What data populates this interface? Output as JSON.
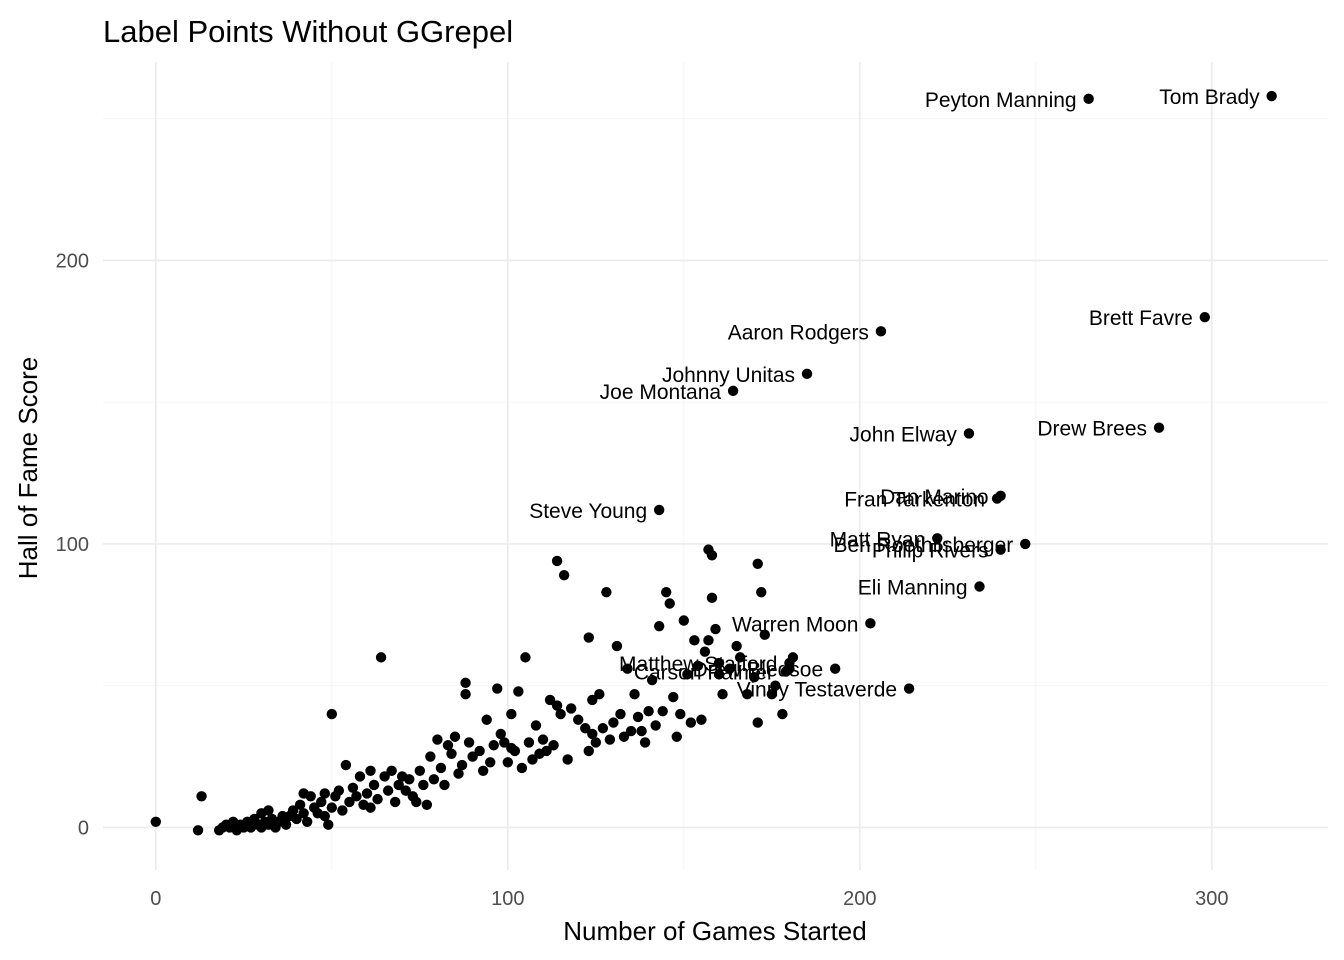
{
  "chart_data": {
    "type": "scatter",
    "title": "Label Points Without GGrepel",
    "xlabel": "Number of Games Started",
    "ylabel": "Hall of Fame Score",
    "xlim": [
      -15,
      333
    ],
    "ylim": [
      -15,
      270
    ],
    "x_ticks": [
      0,
      100,
      200,
      300
    ],
    "y_ticks": [
      0,
      100,
      200
    ],
    "grid": true,
    "legend": "none",
    "point_color": "#000000",
    "labeled_points": [
      {
        "name": "Tom Brady",
        "x": 317,
        "y": 258
      },
      {
        "name": "Peyton Manning",
        "x": 265,
        "y": 257
      },
      {
        "name": "Brett Favre",
        "x": 298,
        "y": 180
      },
      {
        "name": "Aaron Rodgers",
        "x": 206,
        "y": 175
      },
      {
        "name": "Johnny Unitas",
        "x": 185,
        "y": 160
      },
      {
        "name": "Joe Montana",
        "x": 164,
        "y": 154
      },
      {
        "name": "Drew Brees",
        "x": 285,
        "y": 141
      },
      {
        "name": "John Elway",
        "x": 231,
        "y": 139
      },
      {
        "name": "Dan Marino",
        "x": 240,
        "y": 117
      },
      {
        "name": "Fran Tarkenton",
        "x": 239,
        "y": 116
      },
      {
        "name": "Steve Young",
        "x": 143,
        "y": 112
      },
      {
        "name": "Matt Ryan",
        "x": 222,
        "y": 102
      },
      {
        "name": "Ben Roethlisberger",
        "x": 247,
        "y": 100
      },
      {
        "name": "Philip Rivers",
        "x": 240,
        "y": 98
      },
      {
        "name": "Eli Manning",
        "x": 234,
        "y": 85
      },
      {
        "name": "Warren Moon",
        "x": 203,
        "y": 72
      },
      {
        "name": "Matthew Stafford",
        "x": 180,
        "y": 58
      },
      {
        "name": "Carson Palmer",
        "x": 179,
        "y": 55
      },
      {
        "name": "Drew Bledsoe",
        "x": 193,
        "y": 56
      },
      {
        "name": "Vinny Testaverde",
        "x": 214,
        "y": 49
      }
    ],
    "points": [
      [
        0,
        2
      ],
      [
        12,
        -1
      ],
      [
        13,
        11
      ],
      [
        18,
        -1
      ],
      [
        19,
        0
      ],
      [
        20,
        1
      ],
      [
        21,
        0
      ],
      [
        22,
        2
      ],
      [
        23,
        -1
      ],
      [
        24,
        1
      ],
      [
        25,
        0
      ],
      [
        26,
        2
      ],
      [
        27,
        0
      ],
      [
        28,
        3
      ],
      [
        29,
        1
      ],
      [
        30,
        5
      ],
      [
        30,
        0
      ],
      [
        31,
        2
      ],
      [
        32,
        6
      ],
      [
        32,
        1
      ],
      [
        33,
        3
      ],
      [
        34,
        0
      ],
      [
        35,
        2
      ],
      [
        36,
        4
      ],
      [
        37,
        1
      ],
      [
        38,
        4
      ],
      [
        39,
        6
      ],
      [
        40,
        3
      ],
      [
        41,
        8
      ],
      [
        42,
        5
      ],
      [
        42,
        12
      ],
      [
        43,
        2
      ],
      [
        44,
        11
      ],
      [
        45,
        7
      ],
      [
        46,
        5
      ],
      [
        47,
        9
      ],
      [
        48,
        4
      ],
      [
        48,
        12
      ],
      [
        49,
        1
      ],
      [
        50,
        7
      ],
      [
        50,
        40
      ],
      [
        51,
        11
      ],
      [
        52,
        13
      ],
      [
        53,
        6
      ],
      [
        54,
        22
      ],
      [
        55,
        9
      ],
      [
        56,
        14
      ],
      [
        57,
        11
      ],
      [
        58,
        18
      ],
      [
        59,
        8
      ],
      [
        60,
        12
      ],
      [
        61,
        20
      ],
      [
        61,
        7
      ],
      [
        62,
        15
      ],
      [
        63,
        10
      ],
      [
        64,
        60
      ],
      [
        65,
        18
      ],
      [
        66,
        13
      ],
      [
        67,
        20
      ],
      [
        68,
        9
      ],
      [
        69,
        15
      ],
      [
        70,
        18
      ],
      [
        71,
        13
      ],
      [
        72,
        17
      ],
      [
        73,
        11
      ],
      [
        74,
        9
      ],
      [
        75,
        20
      ],
      [
        76,
        15
      ],
      [
        77,
        8
      ],
      [
        78,
        25
      ],
      [
        79,
        17
      ],
      [
        80,
        31
      ],
      [
        81,
        21
      ],
      [
        82,
        15
      ],
      [
        83,
        29
      ],
      [
        84,
        26
      ],
      [
        85,
        32
      ],
      [
        86,
        19
      ],
      [
        87,
        22
      ],
      [
        88,
        47
      ],
      [
        88,
        51
      ],
      [
        89,
        30
      ],
      [
        90,
        25
      ],
      [
        92,
        27
      ],
      [
        93,
        20
      ],
      [
        94,
        38
      ],
      [
        95,
        23
      ],
      [
        96,
        29
      ],
      [
        97,
        49
      ],
      [
        98,
        33
      ],
      [
        99,
        30
      ],
      [
        100,
        23
      ],
      [
        101,
        28
      ],
      [
        101,
        40
      ],
      [
        102,
        27
      ],
      [
        103,
        48
      ],
      [
        104,
        21
      ],
      [
        105,
        60
      ],
      [
        106,
        30
      ],
      [
        107,
        24
      ],
      [
        108,
        36
      ],
      [
        109,
        26
      ],
      [
        110,
        31
      ],
      [
        111,
        27
      ],
      [
        112,
        45
      ],
      [
        113,
        29
      ],
      [
        114,
        94
      ],
      [
        114,
        43
      ],
      [
        115,
        40
      ],
      [
        116,
        89
      ],
      [
        117,
        24
      ],
      [
        118,
        42
      ],
      [
        120,
        38
      ],
      [
        122,
        35
      ],
      [
        123,
        27
      ],
      [
        123,
        67
      ],
      [
        124,
        33
      ],
      [
        124,
        45
      ],
      [
        125,
        30
      ],
      [
        126,
        47
      ],
      [
        127,
        35
      ],
      [
        128,
        83
      ],
      [
        129,
        31
      ],
      [
        130,
        37
      ],
      [
        131,
        64
      ],
      [
        132,
        40
      ],
      [
        133,
        32
      ],
      [
        134,
        56
      ],
      [
        135,
        34
      ],
      [
        136,
        47
      ],
      [
        137,
        39
      ],
      [
        138,
        34
      ],
      [
        139,
        30
      ],
      [
        140,
        41
      ],
      [
        141,
        52
      ],
      [
        142,
        36
      ],
      [
        143,
        71
      ],
      [
        144,
        41
      ],
      [
        145,
        83
      ],
      [
        146,
        79
      ],
      [
        147,
        46
      ],
      [
        148,
        32
      ],
      [
        149,
        40
      ],
      [
        150,
        73
      ],
      [
        151,
        54
      ],
      [
        152,
        37
      ],
      [
        153,
        66
      ],
      [
        154,
        57
      ],
      [
        155,
        38
      ],
      [
        156,
        62
      ],
      [
        157,
        98
      ],
      [
        157,
        66
      ],
      [
        158,
        96
      ],
      [
        158,
        81
      ],
      [
        159,
        70
      ],
      [
        160,
        58
      ],
      [
        160,
        54
      ],
      [
        161,
        47
      ],
      [
        163,
        56
      ],
      [
        165,
        64
      ],
      [
        166,
        60
      ],
      [
        168,
        47
      ],
      [
        170,
        53
      ],
      [
        171,
        93
      ],
      [
        171,
        37
      ],
      [
        172,
        83
      ],
      [
        173,
        68
      ],
      [
        175,
        47
      ],
      [
        176,
        50
      ],
      [
        178,
        40
      ],
      [
        180,
        56
      ],
      [
        181,
        60
      ]
    ]
  }
}
